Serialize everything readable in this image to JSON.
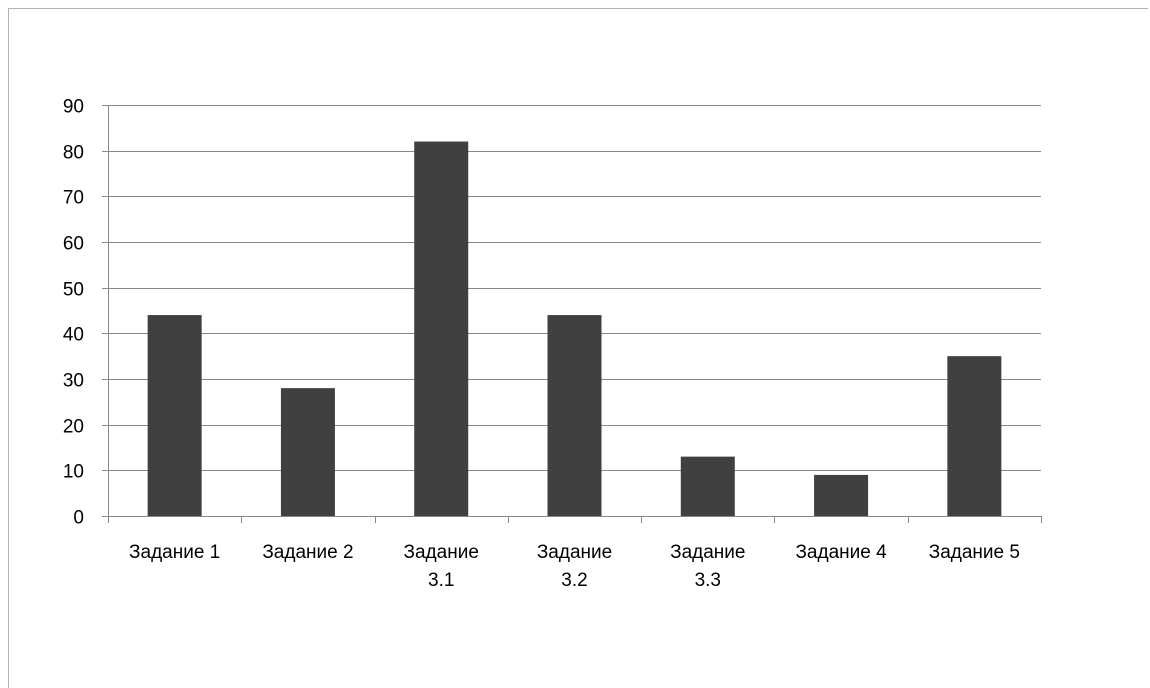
{
  "chart_data": {
    "type": "bar",
    "categories": [
      "Задание 1",
      "Задание 2",
      "Задание 3.1",
      "Задание 3.2",
      "Задание 3.3",
      "Задание 4",
      "Задание 5"
    ],
    "category_lines": [
      [
        "Задание 1"
      ],
      [
        "Задание 2"
      ],
      [
        "Задание",
        "3.1"
      ],
      [
        "Задание",
        "3.2"
      ],
      [
        "Задание",
        "3.3"
      ],
      [
        "Задание 4"
      ],
      [
        "Задание 5"
      ]
    ],
    "values": [
      44,
      28,
      82,
      44,
      13,
      9,
      35
    ],
    "ylim": [
      0,
      90
    ],
    "yticks": [
      0,
      10,
      20,
      30,
      40,
      50,
      60,
      70,
      80,
      90
    ],
    "grid": true,
    "bar_color": "#404040",
    "grid_color": "#888888"
  }
}
